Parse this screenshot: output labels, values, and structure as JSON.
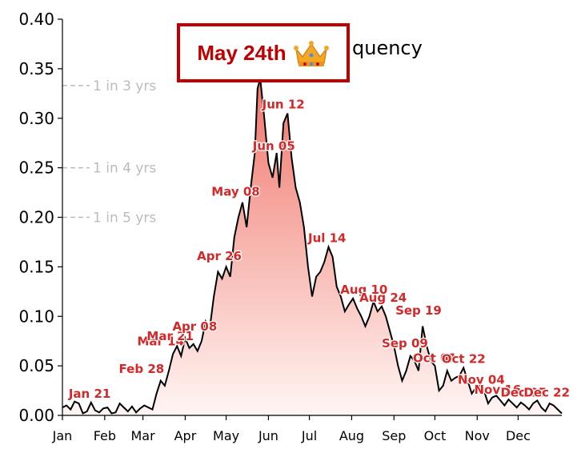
{
  "chart_data": {
    "type": "area",
    "title": "quency",
    "xlabel": "",
    "ylabel": "",
    "xlim": [
      0,
      366
    ],
    "ylim": [
      0,
      0.4
    ],
    "yticks": [
      "0.00",
      "0.05",
      "0.10",
      "0.15",
      "0.20",
      "0.25",
      "0.30",
      "0.35",
      "0.40"
    ],
    "ytick_values": [
      0,
      0.05,
      0.1,
      0.15,
      0.2,
      0.25,
      0.3,
      0.35,
      0.4
    ],
    "month_labels": [
      "Jan",
      "Feb",
      "Mar",
      "Apr",
      "May",
      "Jun",
      "Jul",
      "Aug",
      "Sep",
      "Oct",
      "Nov",
      "Dec"
    ],
    "month_starts": [
      0,
      31,
      59,
      90,
      120,
      151,
      181,
      212,
      243,
      273,
      304,
      334
    ],
    "grid": false,
    "fill_gradient": [
      "#f0766b",
      "#fff5f3"
    ],
    "line_color": "#000000",
    "annotation_color": "#d62728",
    "reference_lines": [
      {
        "y": 0.333,
        "label": "1 in 3 yrs"
      },
      {
        "y": 0.25,
        "label": "1 in 4 yrs"
      },
      {
        "y": 0.2,
        "label": "1 in 5 yrs"
      }
    ],
    "annotations": [
      {
        "label": "Jan 21",
        "x": 20,
        "y": 0.013
      },
      {
        "label": "Feb 28",
        "x": 58,
        "y": 0.038
      },
      {
        "label": "Mar 14",
        "x": 72,
        "y": 0.066
      },
      {
        "label": "Mar 21",
        "x": 79,
        "y": 0.071
      },
      {
        "label": "Apr 08",
        "x": 97,
        "y": 0.081
      },
      {
        "label": "Apr 26",
        "x": 115,
        "y": 0.152
      },
      {
        "label": "May 08",
        "x": 127,
        "y": 0.217
      },
      {
        "label": "Jun 05",
        "x": 155,
        "y": 0.263
      },
      {
        "label": "Jun 12",
        "x": 162,
        "y": 0.305
      },
      {
        "label": "Jul 14",
        "x": 194,
        "y": 0.17
      },
      {
        "label": "Aug 10",
        "x": 221,
        "y": 0.118
      },
      {
        "label": "Aug 24",
        "x": 235,
        "y": 0.11
      },
      {
        "label": "Sep 09",
        "x": 251,
        "y": 0.064
      },
      {
        "label": "Sep 19",
        "x": 261,
        "y": 0.097
      },
      {
        "label": "Oct 01",
        "x": 273,
        "y": 0.049
      },
      {
        "label": "Oct 22",
        "x": 294,
        "y": 0.048
      },
      {
        "label": "Nov 04",
        "x": 307,
        "y": 0.027
      },
      {
        "label": "Nov 16",
        "x": 319,
        "y": 0.017
      },
      {
        "label": "Dec 05",
        "x": 338,
        "y": 0.014
      },
      {
        "label": "Dec 22",
        "x": 355,
        "y": 0.014
      }
    ],
    "callout": {
      "label": "May 24th",
      "icon": "crown-icon",
      "x": 143,
      "y": 0.34
    },
    "x": [
      0,
      3,
      6,
      9,
      12,
      15,
      18,
      21,
      24,
      27,
      30,
      33,
      36,
      39,
      42,
      45,
      48,
      51,
      54,
      57,
      60,
      63,
      66,
      69,
      72,
      75,
      78,
      81,
      84,
      87,
      90,
      93,
      96,
      99,
      102,
      105,
      108,
      111,
      114,
      117,
      120,
      123,
      126,
      129,
      132,
      135,
      138,
      141,
      143,
      145,
      148,
      151,
      154,
      157,
      159,
      162,
      165,
      168,
      171,
      174,
      177,
      180,
      183,
      186,
      189,
      192,
      195,
      198,
      201,
      204,
      207,
      210,
      213,
      216,
      219,
      222,
      225,
      228,
      231,
      234,
      237,
      240,
      243,
      246,
      249,
      252,
      255,
      258,
      261,
      264,
      267,
      270,
      273,
      276,
      279,
      282,
      285,
      288,
      291,
      294,
      297,
      300,
      303,
      306,
      309,
      312,
      315,
      318,
      321,
      324,
      327,
      330,
      333,
      336,
      339,
      342,
      345,
      348,
      351,
      354,
      357,
      360,
      363,
      366
    ],
    "y": [
      0.008,
      0.01,
      0.006,
      0.014,
      0.012,
      0.002,
      0.004,
      0.013,
      0.005,
      0.003,
      0.007,
      0.008,
      0.002,
      0.003,
      0.012,
      0.008,
      0.004,
      0.009,
      0.003,
      0.007,
      0.01,
      0.008,
      0.006,
      0.022,
      0.035,
      0.03,
      0.045,
      0.062,
      0.07,
      0.06,
      0.078,
      0.068,
      0.072,
      0.065,
      0.075,
      0.095,
      0.088,
      0.12,
      0.145,
      0.138,
      0.15,
      0.14,
      0.18,
      0.2,
      0.215,
      0.19,
      0.23,
      0.265,
      0.33,
      0.34,
      0.3,
      0.255,
      0.24,
      0.265,
      0.23,
      0.295,
      0.305,
      0.26,
      0.23,
      0.215,
      0.19,
      0.15,
      0.12,
      0.14,
      0.145,
      0.155,
      0.17,
      0.16,
      0.13,
      0.12,
      0.105,
      0.112,
      0.118,
      0.108,
      0.1,
      0.09,
      0.1,
      0.115,
      0.105,
      0.11,
      0.1,
      0.085,
      0.07,
      0.05,
      0.035,
      0.045,
      0.06,
      0.055,
      0.045,
      0.09,
      0.07,
      0.055,
      0.05,
      0.025,
      0.03,
      0.045,
      0.035,
      0.038,
      0.04,
      0.048,
      0.035,
      0.022,
      0.028,
      0.03,
      0.025,
      0.012,
      0.018,
      0.02,
      0.015,
      0.01,
      0.016,
      0.012,
      0.008,
      0.013,
      0.01,
      0.006,
      0.012,
      0.015,
      0.008,
      0.004,
      0.012,
      0.01,
      0.006,
      0.002
    ]
  }
}
